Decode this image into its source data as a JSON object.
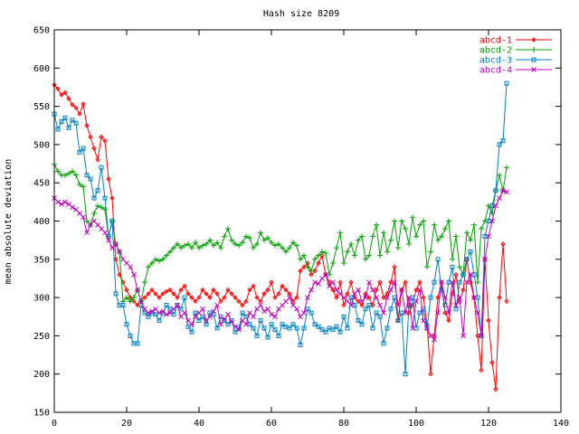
{
  "chart_data": {
    "type": "line",
    "title": "Hash size 8209",
    "xlabel": "",
    "ylabel": "mean absolute deviation",
    "xlim": [
      0,
      140
    ],
    "ylim": [
      150,
      650
    ],
    "xticks": [
      0,
      20,
      40,
      60,
      80,
      100,
      120,
      140
    ],
    "yticks": [
      150,
      200,
      250,
      300,
      350,
      400,
      450,
      500,
      550,
      600,
      650
    ],
    "grid": false,
    "legend_position": "top-right",
    "series": [
      {
        "name": "abcd-1",
        "color": "#ff0000",
        "marker": "diamond",
        "values": [
          578,
          573,
          565,
          568,
          560,
          552,
          548,
          540,
          553,
          525,
          510,
          495,
          480,
          510,
          505,
          455,
          430,
          350,
          330,
          320,
          310,
          300,
          295,
          290,
          295,
          300,
          305,
          310,
          305,
          300,
          305,
          308,
          310,
          305,
          300,
          310,
          315,
          305,
          300,
          295,
          300,
          310,
          305,
          300,
          310,
          305,
          295,
          300,
          310,
          305,
          300,
          295,
          290,
          295,
          310,
          315,
          300,
          295,
          305,
          310,
          320,
          300,
          305,
          315,
          310,
          305,
          295,
          300,
          335,
          340,
          345,
          330,
          335,
          345,
          355,
          330,
          320,
          310,
          300,
          320,
          290,
          305,
          320,
          300,
          295,
          290,
          305,
          300,
          290,
          310,
          320,
          300,
          305,
          320,
          340,
          270,
          310,
          320,
          280,
          290,
          310,
          320,
          300,
          265,
          200,
          250,
          300,
          320,
          280,
          270,
          305,
          330,
          295,
          310,
          350,
          320,
          300,
          250,
          205,
          350,
          270,
          215,
          180,
          300,
          370,
          295
        ]
      },
      {
        "name": "abcd-2",
        "color": "#00a000",
        "marker": "plus",
        "values": [
          474,
          465,
          460,
          460,
          462,
          465,
          460,
          448,
          445,
          400,
          395,
          410,
          420,
          418,
          415,
          380,
          400,
          370,
          360,
          295,
          300,
          295,
          300,
          310,
          295,
          320,
          340,
          345,
          350,
          348,
          350,
          355,
          360,
          365,
          370,
          365,
          368,
          370,
          365,
          372,
          365,
          368,
          370,
          375,
          368,
          372,
          365,
          380,
          390,
          375,
          370,
          368,
          372,
          380,
          378,
          365,
          370,
          385,
          375,
          378,
          372,
          368,
          370,
          365,
          360,
          365,
          372,
          368,
          350,
          355,
          340,
          335,
          350,
          355,
          360,
          358,
          330,
          345,
          365,
          385,
          345,
          360,
          370,
          355,
          375,
          380,
          350,
          355,
          380,
          395,
          355,
          385,
          360,
          375,
          400,
          365,
          400,
          390,
          370,
          405,
          380,
          395,
          400,
          340,
          360,
          395,
          375,
          380,
          390,
          400,
          350,
          380,
          340,
          330,
          385,
          375,
          395,
          320,
          390,
          400,
          420,
          410,
          440,
          460,
          440,
          470
        ]
      },
      {
        "name": "abcd-3",
        "color": "#0080c0",
        "marker": "square",
        "values": [
          540,
          520,
          530,
          535,
          522,
          532,
          528,
          490,
          495,
          460,
          455,
          430,
          440,
          470,
          430,
          380,
          400,
          305,
          290,
          290,
          265,
          250,
          240,
          240,
          290,
          280,
          275,
          280,
          278,
          270,
          280,
          290,
          285,
          278,
          290,
          285,
          300,
          262,
          255,
          280,
          270,
          275,
          265,
          280,
          278,
          260,
          275,
          270,
          265,
          270,
          255,
          260,
          280,
          275,
          265,
          260,
          250,
          270,
          260,
          248,
          265,
          258,
          250,
          265,
          262,
          260,
          265,
          260,
          238,
          260,
          285,
          280,
          265,
          262,
          258,
          255,
          260,
          258,
          262,
          255,
          275,
          260,
          300,
          290,
          270,
          265,
          285,
          290,
          260,
          280,
          275,
          240,
          260,
          285,
          300,
          270,
          280,
          200,
          290,
          300,
          260,
          280,
          285,
          260,
          300,
          320,
          350,
          310,
          290,
          320,
          340,
          285,
          320,
          330,
          350,
          360,
          330,
          300,
          250,
          380,
          400,
          420,
          440,
          500,
          505,
          580
        ]
      },
      {
        "name": "abcd-4",
        "color": "#c000c0",
        "marker": "cross",
        "values": [
          430,
          425,
          422,
          425,
          422,
          418,
          415,
          410,
          405,
          385,
          395,
          400,
          395,
          390,
          385,
          375,
          365,
          370,
          360,
          350,
          345,
          340,
          330,
          310,
          295,
          285,
          280,
          282,
          285,
          280,
          282,
          278,
          280,
          285,
          290,
          275,
          280,
          270,
          265,
          275,
          280,
          285,
          270,
          275,
          282,
          290,
          265,
          272,
          278,
          268,
          262,
          258,
          270,
          265,
          280,
          275,
          285,
          290,
          282,
          285,
          278,
          275,
          285,
          290,
          295,
          300,
          290,
          285,
          275,
          280,
          300,
          310,
          320,
          318,
          325,
          330,
          315,
          320,
          310,
          305,
          300,
          295,
          290,
          305,
          310,
          295,
          300,
          320,
          310,
          300,
          290,
          280,
          300,
          310,
          320,
          290,
          310,
          280,
          300,
          260,
          295,
          310,
          270,
          260,
          250,
          245,
          280,
          320,
          300,
          280,
          320,
          290,
          300,
          250,
          320,
          330,
          300,
          280,
          250,
          350,
          380,
          400,
          420,
          430,
          440,
          438
        ]
      }
    ]
  }
}
